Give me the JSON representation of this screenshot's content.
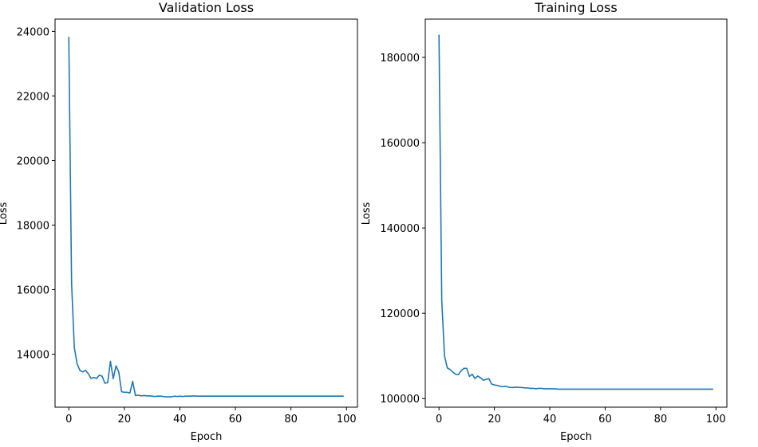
{
  "chart_data": [
    {
      "type": "line",
      "title": "Validation Loss",
      "xlabel": "Epoch",
      "ylabel": "Loss",
      "xlim": [
        -4.95,
        103.95
      ],
      "ylim": [
        12360,
        24380
      ],
      "xticks": [
        0,
        20,
        40,
        60,
        80,
        100
      ],
      "yticks": [
        14000,
        16000,
        18000,
        20000,
        22000,
        24000
      ],
      "grid": false,
      "series": [
        {
          "color": "#1f77b4",
          "x": [
            0,
            1,
            2,
            3,
            4,
            5,
            6,
            7,
            8,
            9,
            10,
            11,
            12,
            13,
            14,
            15,
            16,
            17,
            18,
            19,
            20,
            21,
            22,
            23,
            24,
            25,
            26,
            27,
            28,
            29,
            30,
            31,
            32,
            33,
            34,
            35,
            36,
            37,
            38,
            39,
            40,
            41,
            42,
            43,
            44,
            45,
            46,
            47,
            48,
            49,
            50,
            51,
            52,
            53,
            54,
            55,
            56,
            57,
            58,
            59,
            60,
            61,
            62,
            63,
            64,
            65,
            66,
            67,
            68,
            69,
            70,
            71,
            72,
            73,
            74,
            75,
            76,
            77,
            78,
            79,
            80,
            81,
            82,
            83,
            84,
            85,
            86,
            87,
            88,
            89,
            90,
            91,
            92,
            93,
            94,
            95,
            96,
            97,
            98,
            99
          ],
          "y": [
            23830,
            16200,
            14200,
            13700,
            13500,
            13450,
            13500,
            13400,
            13250,
            13280,
            13250,
            13350,
            13320,
            13100,
            13120,
            13780,
            13240,
            13640,
            13450,
            12840,
            12820,
            12820,
            12800,
            13160,
            12720,
            12730,
            12710,
            12720,
            12710,
            12710,
            12700,
            12690,
            12700,
            12700,
            12690,
            12680,
            12680,
            12680,
            12700,
            12690,
            12700,
            12690,
            12700,
            12700,
            12700,
            12710,
            12700,
            12700,
            12700,
            12700,
            12700,
            12700,
            12700,
            12700,
            12700,
            12700,
            12700,
            12700,
            12700,
            12700,
            12700,
            12700,
            12700,
            12700,
            12700,
            12700,
            12700,
            12700,
            12700,
            12700,
            12700,
            12700,
            12700,
            12700,
            12700,
            12700,
            12700,
            12700,
            12700,
            12700,
            12700,
            12700,
            12700,
            12700,
            12700,
            12700,
            12700,
            12700,
            12700,
            12700,
            12700,
            12700,
            12700,
            12700,
            12700,
            12700,
            12700,
            12700,
            12700,
            12700
          ]
        }
      ]
    },
    {
      "type": "line",
      "title": "Training Loss",
      "xlabel": "Epoch",
      "ylabel": "Loss",
      "xlim": [
        -4.95,
        103.95
      ],
      "ylim": [
        97990,
        188970
      ],
      "xticks": [
        0,
        20,
        40,
        60,
        80,
        100
      ],
      "yticks": [
        100000,
        120000,
        140000,
        160000,
        180000
      ],
      "grid": false,
      "series": [
        {
          "color": "#1f77b4",
          "x": [
            0,
            1,
            2,
            3,
            4,
            5,
            6,
            7,
            8,
            9,
            10,
            11,
            12,
            13,
            14,
            15,
            16,
            17,
            18,
            19,
            20,
            21,
            22,
            23,
            24,
            25,
            26,
            27,
            28,
            29,
            30,
            31,
            32,
            33,
            34,
            35,
            36,
            37,
            38,
            39,
            40,
            41,
            42,
            43,
            44,
            45,
            46,
            47,
            48,
            49,
            50,
            51,
            52,
            53,
            54,
            55,
            56,
            57,
            58,
            59,
            60,
            61,
            62,
            63,
            64,
            65,
            66,
            67,
            68,
            69,
            70,
            71,
            72,
            73,
            74,
            75,
            76,
            77,
            78,
            79,
            80,
            81,
            82,
            83,
            84,
            85,
            86,
            87,
            88,
            89,
            90,
            91,
            92,
            93,
            94,
            95,
            96,
            97,
            98,
            99
          ],
          "y": [
            185300,
            123000,
            110000,
            107200,
            106800,
            106200,
            105700,
            105600,
            106500,
            107100,
            107100,
            105200,
            105700,
            104700,
            105300,
            104900,
            104300,
            104500,
            104700,
            103400,
            103200,
            103100,
            102900,
            102800,
            102900,
            102700,
            102600,
            102600,
            102700,
            102600,
            102600,
            102500,
            102500,
            102400,
            102400,
            102300,
            102400,
            102400,
            102300,
            102300,
            102300,
            102300,
            102300,
            102200,
            102200,
            102200,
            102200,
            102200,
            102200,
            102200,
            102200,
            102200,
            102200,
            102200,
            102200,
            102200,
            102200,
            102200,
            102200,
            102200,
            102200,
            102200,
            102200,
            102200,
            102200,
            102200,
            102200,
            102200,
            102200,
            102200,
            102200,
            102200,
            102200,
            102200,
            102200,
            102200,
            102200,
            102200,
            102200,
            102200,
            102200,
            102200,
            102200,
            102200,
            102200,
            102200,
            102200,
            102200,
            102200,
            102200,
            102200,
            102200,
            102200,
            102200,
            102200,
            102200,
            102200,
            102200,
            102200,
            102200
          ]
        }
      ]
    }
  ]
}
